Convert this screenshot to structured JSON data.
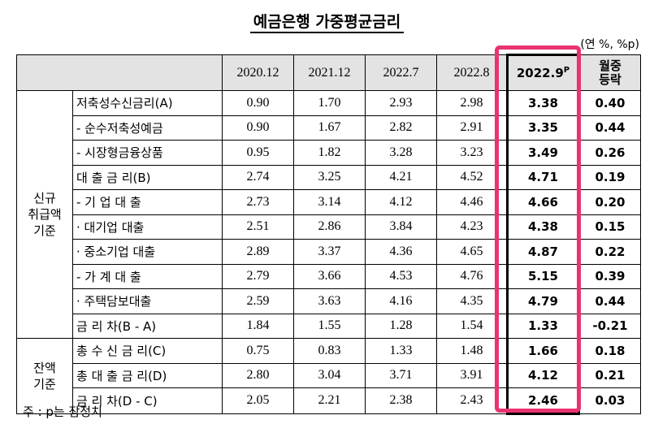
{
  "title": "예금은행 가중평균금리",
  "unit": "(연 %, %p)",
  "columns": [
    "2020.12",
    "2021.12",
    "2022.7",
    "2022.8"
  ],
  "highlight_column": {
    "label": "2022.9",
    "sup": "P"
  },
  "change_header": [
    "월중",
    "등락"
  ],
  "groups": {
    "new": [
      "신규",
      "취급액",
      "기준"
    ],
    "balance": [
      "잔액",
      "기준"
    ]
  },
  "rows": [
    {
      "label": "저축성수신금리(A)",
      "values": [
        "0.90",
        "1.70",
        "2.93",
        "2.98"
      ],
      "latest": "3.38",
      "change": "0.40"
    },
    {
      "label": "- 순수저축성예금",
      "values": [
        "0.90",
        "1.67",
        "2.82",
        "2.91"
      ],
      "latest": "3.35",
      "change": "0.44"
    },
    {
      "label": "- 시장형금융상품",
      "values": [
        "0.95",
        "1.82",
        "3.28",
        "3.23"
      ],
      "latest": "3.49",
      "change": "0.26"
    },
    {
      "label": "대 출 금 리(B)",
      "values": [
        "2.74",
        "3.25",
        "4.21",
        "4.52"
      ],
      "latest": "4.71",
      "change": "0.19"
    },
    {
      "label": "- 기 업 대 출",
      "values": [
        "2.73",
        "3.14",
        "4.12",
        "4.46"
      ],
      "latest": "4.66",
      "change": "0.20"
    },
    {
      "label": "· 대기업 대출",
      "values": [
        "2.51",
        "2.86",
        "3.84",
        "4.23"
      ],
      "latest": "4.38",
      "change": "0.15"
    },
    {
      "label": "· 중소기업 대출",
      "values": [
        "2.89",
        "3.37",
        "4.36",
        "4.65"
      ],
      "latest": "4.87",
      "change": "0.22"
    },
    {
      "label": "- 가 계 대 출",
      "values": [
        "2.79",
        "3.66",
        "4.53",
        "4.76"
      ],
      "latest": "5.15",
      "change": "0.39"
    },
    {
      "label": "· 주택담보대출",
      "values": [
        "2.59",
        "3.63",
        "4.16",
        "4.35"
      ],
      "latest": "4.79",
      "change": "0.44"
    },
    {
      "label": "금 리 차(B - A)",
      "values": [
        "1.84",
        "1.55",
        "1.28",
        "1.54"
      ],
      "latest": "1.33",
      "change": "-0.21"
    },
    {
      "label": "총 수 신 금 리(C)",
      "values": [
        "0.75",
        "0.83",
        "1.33",
        "1.48"
      ],
      "latest": "1.66",
      "change": "0.18"
    },
    {
      "label": "총 대 출 금 리(D)",
      "values": [
        "2.80",
        "3.04",
        "3.71",
        "3.91"
      ],
      "latest": "4.12",
      "change": "0.21"
    },
    {
      "label": "금 리 차(D - C)",
      "values": [
        "2.05",
        "2.21",
        "2.38",
        "2.43"
      ],
      "latest": "2.46",
      "change": "0.03"
    }
  ],
  "note": "주 : p는 잠정치",
  "colors": {
    "header_bg": "#e3e3e3",
    "highlight_frame": "#e8336f"
  }
}
